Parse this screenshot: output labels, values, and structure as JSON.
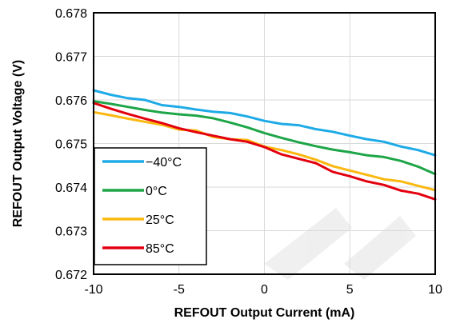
{
  "chart_data": {
    "type": "line",
    "title": "",
    "xlabel": "REFOUT Output Current (mA)",
    "ylabel": "REFOUT Output Voltage (V)",
    "xlim": [
      -10,
      10
    ],
    "ylim": [
      0.672,
      0.678
    ],
    "x_ticks": [
      -10,
      -5,
      0,
      5,
      10
    ],
    "y_ticks": [
      0.672,
      0.673,
      0.674,
      0.675,
      0.676,
      0.677,
      0.678
    ],
    "x_tick_labels": [
      "-10",
      "-5",
      "0",
      "5",
      "10"
    ],
    "y_tick_labels": [
      "0.672",
      "0.673",
      "0.674",
      "0.675",
      "0.676",
      "0.677",
      "0.678"
    ],
    "grid": true,
    "legend_position": "bottom-left",
    "series": [
      {
        "name": "−40°C",
        "color": "#1EAAE7",
        "x": [
          -10,
          -9,
          -8,
          -7,
          -6,
          -5,
          -4,
          -3,
          -2,
          -1,
          0,
          1,
          2,
          3,
          4,
          5,
          6,
          7,
          8,
          9,
          10
        ],
        "y": [
          0.67622,
          0.67612,
          0.67604,
          0.676,
          0.67588,
          0.67584,
          0.67578,
          0.67573,
          0.6757,
          0.67562,
          0.67552,
          0.67545,
          0.67542,
          0.67533,
          0.67527,
          0.67518,
          0.6751,
          0.67504,
          0.67493,
          0.67485,
          0.67473
        ]
      },
      {
        "name": "0°C",
        "color": "#1EA548",
        "x": [
          -10,
          -9,
          -8,
          -7,
          -6,
          -5,
          -4,
          -3,
          -2,
          -1,
          0,
          1,
          2,
          3,
          4,
          5,
          6,
          7,
          8,
          9,
          10
        ],
        "y": [
          0.67597,
          0.67591,
          0.67584,
          0.67577,
          0.67571,
          0.67567,
          0.67564,
          0.67558,
          0.67548,
          0.67537,
          0.67524,
          0.67513,
          0.67503,
          0.67494,
          0.67486,
          0.6748,
          0.67473,
          0.67469,
          0.6746,
          0.67447,
          0.6743
        ]
      },
      {
        "name": "25°C",
        "color": "#FBB810",
        "x": [
          -10,
          -9,
          -8,
          -7,
          -6,
          -5,
          -4,
          -3,
          -2,
          -1,
          0,
          1,
          2,
          3,
          4,
          5,
          6,
          7,
          8,
          9,
          10
        ],
        "y": [
          0.67572,
          0.67565,
          0.67557,
          0.6755,
          0.67543,
          0.67532,
          0.6753,
          0.67515,
          0.6751,
          0.67508,
          0.67493,
          0.67485,
          0.67475,
          0.67463,
          0.67448,
          0.67438,
          0.67428,
          0.67418,
          0.67413,
          0.67403,
          0.67393
        ]
      },
      {
        "name": "85°C",
        "color": "#E3000F",
        "x": [
          -10,
          -9,
          -8,
          -7,
          -6,
          -5,
          -4,
          -3,
          -2,
          -1,
          0,
          1,
          2,
          3,
          4,
          5,
          6,
          7,
          8,
          9,
          10
        ],
        "y": [
          0.67593,
          0.6758,
          0.67568,
          0.67557,
          0.67547,
          0.67535,
          0.67526,
          0.67518,
          0.6751,
          0.67504,
          0.67492,
          0.67475,
          0.67465,
          0.67455,
          0.67435,
          0.67425,
          0.67413,
          0.67405,
          0.67392,
          0.67385,
          0.67372
        ]
      }
    ]
  }
}
